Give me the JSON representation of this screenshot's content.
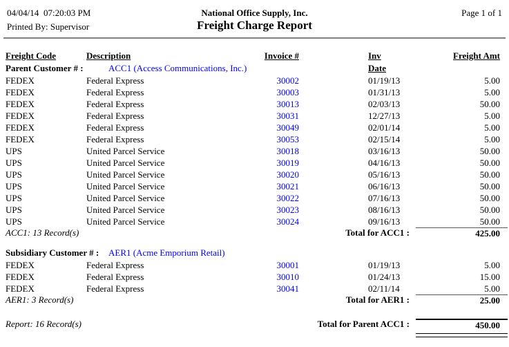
{
  "header": {
    "date": "04/04/14",
    "time": "07:20:03 PM",
    "company": "National Office Supply, Inc.",
    "page": "Page 1 of 1",
    "printed_by": "Printed By: Supervisor",
    "title": "Freight Charge Report"
  },
  "columns": [
    "Freight Code",
    "Description",
    "Invoice #",
    "Inv Date",
    "Freight Amt"
  ],
  "groups": [
    {
      "group_label": "Parent Customer # :",
      "customer": "ACC1 (Access Communications, Inc.)",
      "rows": [
        [
          "FEDEX",
          "Federal Express",
          "30002",
          "01/19/13",
          "5.00"
        ],
        [
          "FEDEX",
          "Federal Express",
          "30003",
          "01/31/13",
          "5.00"
        ],
        [
          "FEDEX",
          "Federal Express",
          "30013",
          "02/03/13",
          "50.00"
        ],
        [
          "FEDEX",
          "Federal Express",
          "30031",
          "12/27/13",
          "5.00"
        ],
        [
          "FEDEX",
          "Federal Express",
          "30049",
          "02/01/14",
          "5.00"
        ],
        [
          "FEDEX",
          "Federal Express",
          "30053",
          "02/15/14",
          "5.00"
        ],
        [
          "UPS",
          "United Parcel Service",
          "30018",
          "03/16/13",
          "50.00"
        ],
        [
          "UPS",
          "United Parcel Service",
          "30019",
          "04/16/13",
          "50.00"
        ],
        [
          "UPS",
          "United Parcel Service",
          "30020",
          "05/16/13",
          "50.00"
        ],
        [
          "UPS",
          "United Parcel Service",
          "30021",
          "06/16/13",
          "50.00"
        ],
        [
          "UPS",
          "United Parcel Service",
          "30022",
          "07/16/13",
          "50.00"
        ],
        [
          "UPS",
          "United Parcel Service",
          "30023",
          "08/16/13",
          "50.00"
        ],
        [
          "UPS",
          "United Parcel Service",
          "30024",
          "09/16/13",
          "50.00"
        ]
      ],
      "record_text": "ACC1: 13 Record(s)",
      "total_label": "Total for ACC1 :",
      "total": "425.00"
    },
    {
      "group_label": "Subsidiary Customer # :",
      "customer": "AER1 (Acme Emporium Retail)",
      "rows": [
        [
          "FEDEX",
          "Federal Express",
          "30001",
          "01/19/13",
          "5.00"
        ],
        [
          "FEDEX",
          "Federal Express",
          "30010",
          "01/24/13",
          "15.00"
        ],
        [
          "FEDEX",
          "Federal Express",
          "30041",
          "02/11/14",
          "5.00"
        ]
      ],
      "record_text": "AER1: 3 Record(s)",
      "total_label": "Total for AER1 :",
      "total": "25.00"
    }
  ],
  "report_footer": {
    "record_text": "Report: 16 Record(s)",
    "total_label": "Total for Parent ACC1 :",
    "total": "450.00"
  },
  "colors": {
    "link": "#0000ff"
  }
}
